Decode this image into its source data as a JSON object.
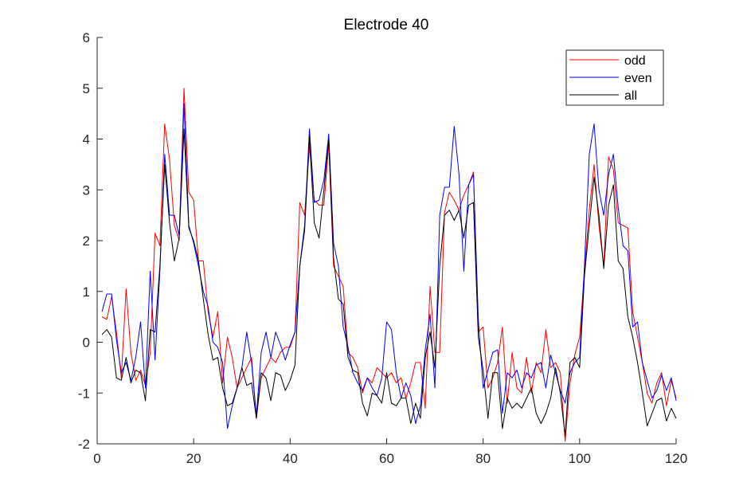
{
  "chart_data": {
    "type": "line",
    "title": "Electrode 40",
    "xlabel": "",
    "ylabel": "",
    "xlim": [
      0,
      120
    ],
    "ylim": [
      -2,
      6
    ],
    "xticks": [
      0,
      20,
      40,
      60,
      80,
      100,
      120
    ],
    "yticks": [
      -2,
      -1,
      0,
      1,
      2,
      3,
      4,
      5,
      6
    ],
    "grid": false,
    "legend_position": "top-right",
    "x": [
      1,
      2,
      3,
      4,
      5,
      6,
      7,
      8,
      9,
      10,
      11,
      12,
      13,
      14,
      15,
      16,
      17,
      18,
      19,
      20,
      21,
      22,
      23,
      24,
      25,
      26,
      27,
      28,
      29,
      30,
      31,
      32,
      33,
      34,
      35,
      36,
      37,
      38,
      39,
      40,
      41,
      42,
      43,
      44,
      45,
      46,
      47,
      48,
      49,
      50,
      51,
      52,
      53,
      54,
      55,
      56,
      57,
      58,
      59,
      60,
      61,
      62,
      63,
      64,
      65,
      66,
      67,
      68,
      69,
      70,
      71,
      72,
      73,
      74,
      75,
      76,
      77,
      78,
      79,
      80,
      81,
      82,
      83,
      84,
      85,
      86,
      87,
      88,
      89,
      90,
      91,
      92,
      93,
      94,
      95,
      96,
      97,
      98,
      99,
      100,
      101,
      102,
      103,
      104,
      105,
      106,
      107,
      108,
      109,
      110,
      111,
      112,
      113,
      114,
      115,
      116,
      117,
      118,
      119,
      120
    ],
    "series": [
      {
        "name": "odd",
        "color": "#ff0000",
        "values": [
          0.5,
          0.45,
          0.9,
          0.2,
          -0.7,
          1.05,
          -0.2,
          -0.75,
          -0.55,
          -0.85,
          -0.2,
          2.15,
          1.9,
          4.3,
          3.6,
          2.3,
          2.0,
          5.0,
          2.95,
          2.8,
          1.6,
          1.6,
          0.6,
          0.1,
          0.6,
          -0.8,
          0.1,
          -0.3,
          -0.9,
          -0.7,
          -0.5,
          -0.3,
          -1.5,
          -0.7,
          -0.5,
          -0.3,
          -0.4,
          -0.2,
          -0.1,
          -0.1,
          0.2,
          2.75,
          2.5,
          3.85,
          2.8,
          2.7,
          2.7,
          3.9,
          1.5,
          1.3,
          1.1,
          -0.2,
          -0.3,
          -0.5,
          -1.0,
          -0.7,
          -0.8,
          -0.5,
          -0.6,
          -0.7,
          -0.6,
          -0.8,
          -0.7,
          -1.1,
          -0.8,
          -0.4,
          -0.4,
          -1.3,
          1.1,
          -0.2,
          -0.2,
          2.55,
          2.95,
          2.8,
          2.6,
          2.9,
          3.1,
          3.35,
          0.2,
          0.3,
          -0.9,
          -0.7,
          -0.4,
          0.3,
          -1.2,
          -0.2,
          -0.9,
          -1.0,
          -0.3,
          -1.0,
          -0.4,
          -0.6,
          0.25,
          -0.5,
          -0.4,
          -0.6,
          -1.95,
          -0.8,
          -0.25,
          0.1,
          1.4,
          2.6,
          3.5,
          2.3,
          1.5,
          3.65,
          3.4,
          2.35,
          2.3,
          2.25,
          0.6,
          0.1,
          -0.4,
          -1.0,
          -1.2,
          -0.8,
          -0.6,
          -1.25,
          -0.75,
          -1.1
        ]
      },
      {
        "name": "even",
        "color": "#0000ff",
        "values": [
          0.6,
          0.95,
          0.95,
          0.05,
          -0.6,
          -0.4,
          -0.75,
          -0.3,
          0.4,
          -0.9,
          1.4,
          -0.35,
          1.4,
          3.7,
          2.5,
          2.5,
          2.1,
          4.7,
          2.3,
          1.95,
          1.5,
          1.0,
          0.7,
          0.0,
          -0.1,
          -0.4,
          -1.7,
          -1.25,
          -0.9,
          -0.5,
          0.2,
          -0.4,
          -1.45,
          -0.2,
          0.2,
          -0.3,
          0.2,
          -0.05,
          -0.35,
          -0.05,
          0.2,
          1.5,
          2.3,
          4.2,
          2.75,
          2.8,
          3.2,
          4.1,
          1.95,
          1.5,
          0.3,
          -0.1,
          -0.6,
          -0.8,
          -0.95,
          -0.7,
          -0.9,
          -1.05,
          -0.7,
          0.4,
          0.25,
          -0.6,
          -1.1,
          -0.8,
          -1.05,
          -1.6,
          -1.25,
          -0.15,
          0.55,
          -0.9,
          2.5,
          3.05,
          3.05,
          4.25,
          3.3,
          1.4,
          3.1,
          3.3,
          0.45,
          -0.9,
          -0.55,
          -0.2,
          -0.15,
          -1.4,
          -0.6,
          -0.7,
          -0.55,
          -0.9,
          -0.6,
          -0.7,
          -0.45,
          -0.4,
          -0.9,
          -0.25,
          -0.6,
          -0.95,
          -1.2,
          -0.6,
          -0.4,
          -0.3,
          1.5,
          3.7,
          4.3,
          3.0,
          2.5,
          3.3,
          3.7,
          2.65,
          1.9,
          1.8,
          0.3,
          0.4,
          -0.4,
          -0.75,
          -1.1,
          -0.95,
          -0.65,
          -0.95,
          -0.7,
          -1.15
        ]
      },
      {
        "name": "all",
        "color": "#000000",
        "values": [
          0.15,
          0.25,
          0.1,
          -0.7,
          -0.75,
          -0.3,
          -0.8,
          -0.55,
          -0.6,
          -1.15,
          0.25,
          0.2,
          1.5,
          3.5,
          2.35,
          1.6,
          2.05,
          4.2,
          2.25,
          2.0,
          1.6,
          0.85,
          0.15,
          -0.35,
          -0.3,
          -0.9,
          -1.25,
          -1.2,
          -0.9,
          -0.5,
          -0.85,
          -0.8,
          -1.5,
          -0.6,
          -0.7,
          -1.15,
          -0.6,
          -0.65,
          -0.95,
          -0.75,
          -0.45,
          1.5,
          2.2,
          4.05,
          2.35,
          2.05,
          3.0,
          4.0,
          1.65,
          0.85,
          0.75,
          -0.3,
          -0.55,
          -0.6,
          -1.2,
          -1.45,
          -1.0,
          -1.05,
          -1.2,
          -0.6,
          -1.2,
          -1.25,
          -1.1,
          -1.1,
          -1.6,
          -1.2,
          -1.5,
          -0.3,
          0.2,
          -0.5,
          1.5,
          2.5,
          2.6,
          2.4,
          2.6,
          2.05,
          2.7,
          2.75,
          0.1,
          -0.55,
          -1.5,
          -0.6,
          -0.6,
          -1.7,
          -1.1,
          -1.3,
          -1.2,
          -1.3,
          -1.1,
          -0.9,
          -1.4,
          -1.6,
          -1.4,
          -1.1,
          -0.5,
          -1.0,
          -1.85,
          -0.4,
          -0.3,
          -0.5,
          1.3,
          2.3,
          3.25,
          2.5,
          1.45,
          2.7,
          3.1,
          1.6,
          1.45,
          0.5,
          0.1,
          -0.4,
          -1.0,
          -1.65,
          -1.4,
          -1.15,
          -1.1,
          -1.55,
          -1.3,
          -1.5
        ]
      }
    ]
  }
}
